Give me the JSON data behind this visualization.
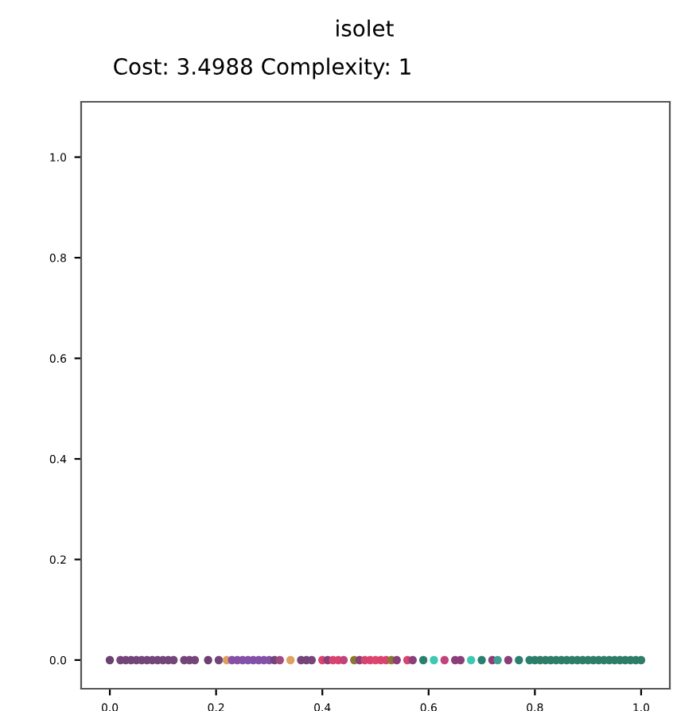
{
  "chart_data": {
    "type": "scatter",
    "title": "isolet",
    "subtitle": "Cost: 3.4988 Complexity: 1",
    "x": [
      0.0,
      0.02,
      0.03,
      0.04,
      0.05,
      0.06,
      0.07,
      0.08,
      0.09,
      0.1,
      0.11,
      0.12,
      0.14,
      0.15,
      0.16,
      0.185,
      0.205,
      0.22,
      0.23,
      0.24,
      0.25,
      0.26,
      0.27,
      0.28,
      0.29,
      0.3,
      0.31,
      0.32,
      0.34,
      0.36,
      0.37,
      0.38,
      0.4,
      0.41,
      0.42,
      0.43,
      0.44,
      0.46,
      0.47,
      0.48,
      0.49,
      0.5,
      0.51,
      0.52,
      0.53,
      0.54,
      0.56,
      0.57,
      0.59,
      0.61,
      0.63,
      0.65,
      0.66,
      0.68,
      0.7,
      0.72,
      0.73,
      0.75,
      0.77,
      0.79,
      0.8,
      0.81,
      0.82,
      0.83,
      0.84,
      0.85,
      0.86,
      0.87,
      0.88,
      0.89,
      0.9,
      0.91,
      0.92,
      0.93,
      0.94,
      0.95,
      0.96,
      0.97,
      0.98,
      0.99,
      1.0
    ],
    "values": [
      0,
      0,
      0,
      0,
      0,
      0,
      0,
      0,
      0,
      0,
      0,
      0,
      0,
      0,
      0,
      0,
      0,
      0,
      0,
      0,
      0,
      0,
      0,
      0,
      0,
      0,
      0,
      0,
      0,
      0,
      0,
      0,
      0,
      0,
      0,
      0,
      0,
      0,
      0,
      0,
      0,
      0,
      0,
      0,
      0,
      0,
      0,
      0,
      0,
      0,
      0,
      0,
      0,
      0,
      0,
      0,
      0,
      0,
      0,
      0,
      0,
      0,
      0,
      0,
      0,
      0,
      0,
      0,
      0,
      0,
      0,
      0,
      0,
      0,
      0,
      0,
      0,
      0,
      0,
      0,
      0
    ],
    "colors": [
      "#6e3f72",
      "#74457a",
      "#74457a",
      "#74457a",
      "#74457a",
      "#74457a",
      "#74457a",
      "#74457a",
      "#74457a",
      "#74457a",
      "#74457a",
      "#74457a",
      "#74457a",
      "#74457a",
      "#74457a",
      "#6e3f72",
      "#74457a",
      "#e0a060",
      "#8450a8",
      "#8450a8",
      "#8450a8",
      "#8450a8",
      "#8450a8",
      "#8450a8",
      "#8450a8",
      "#8450a8",
      "#74457a",
      "#a04a80",
      "#e0a060",
      "#74457a",
      "#74457a",
      "#74457a",
      "#d9436f",
      "#8a3f78",
      "#d9436f",
      "#d9436f",
      "#c0447a",
      "#8a7a30",
      "#8a3f78",
      "#d9436f",
      "#d9436f",
      "#e0456c",
      "#d9436f",
      "#d9436f",
      "#8a7a30",
      "#8a3f78",
      "#d9436f",
      "#8a3f78",
      "#2a8070",
      "#3ec9b4",
      "#c0447a",
      "#8a3f78",
      "#8a3f78",
      "#3ec9b4",
      "#2a8070",
      "#8a3f78",
      "#3e9f90",
      "#8a3f78",
      "#2a8070",
      "#2a8070",
      "#2e7d68",
      "#2e7d68",
      "#2e7d68",
      "#2e7d68",
      "#2e7d68",
      "#2e7d68",
      "#2e7d68",
      "#2e7d68",
      "#2e7d68",
      "#2e7d68",
      "#2e7d68",
      "#2e7d68",
      "#2e7d68",
      "#2e7d68",
      "#2e7d68",
      "#2e7d68",
      "#2e7d68",
      "#2e7d68",
      "#2e7d68",
      "#2e7d68",
      "#2e7d68"
    ],
    "marker": "circle",
    "grid": false,
    "xlim": [
      -0.054,
      1.054
    ],
    "ylim": [
      -0.057,
      1.11
    ],
    "xticks": [
      {
        "value": 0,
        "label": "0.0"
      },
      {
        "value": 0.2,
        "label": "0.2"
      },
      {
        "value": 0.4,
        "label": "0.4"
      },
      {
        "value": 0.6,
        "label": "0.6"
      },
      {
        "value": 0.8,
        "label": "0.8"
      },
      {
        "value": 1,
        "label": "1.0"
      }
    ],
    "yticks": [
      {
        "value": 0,
        "label": "0.0"
      },
      {
        "value": 0.2,
        "label": "0.2"
      },
      {
        "value": 0.4,
        "label": "0.4"
      },
      {
        "value": 0.6,
        "label": "0.6"
      },
      {
        "value": 0.8,
        "label": "0.8"
      },
      {
        "value": 1,
        "label": "1.0"
      }
    ]
  }
}
